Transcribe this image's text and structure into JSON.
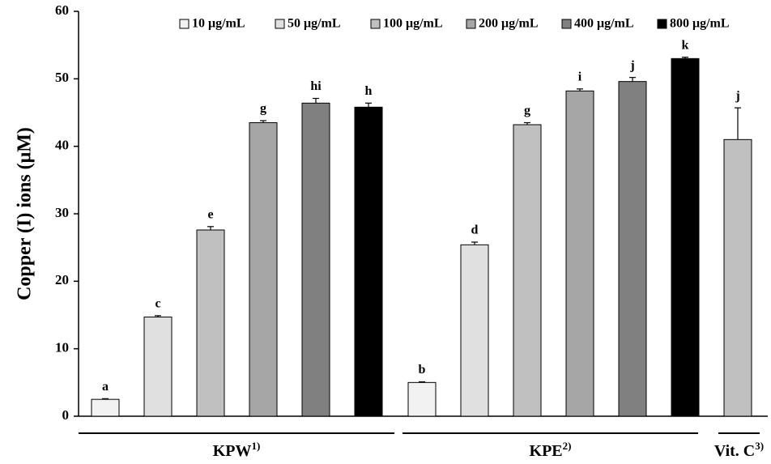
{
  "chart_data": {
    "type": "bar",
    "y_label": "Copper (I) ions (μM)",
    "categories": [
      "KPW",
      "KPE"
    ],
    "category_superscripts": [
      "1)",
      "2)"
    ],
    "series": [
      {
        "name": "10 μg/mL",
        "color": "#f2f2f2",
        "values": [
          2.5,
          5.0
        ],
        "errors": [
          0.1,
          0.1
        ],
        "letters": [
          "a",
          "b"
        ]
      },
      {
        "name": "50 μg/mL",
        "color": "#e0e0e0",
        "values": [
          14.7,
          25.4
        ],
        "errors": [
          0.2,
          0.4
        ],
        "letters": [
          "c",
          "d"
        ]
      },
      {
        "name": "100 μg/mL",
        "color": "#c0c0c0",
        "values": [
          27.6,
          43.2
        ],
        "errors": [
          0.5,
          0.3
        ],
        "letters": [
          "e",
          "g"
        ]
      },
      {
        "name": "200 μg/mL",
        "color": "#a6a6a6",
        "values": [
          43.5,
          48.2
        ],
        "errors": [
          0.3,
          0.3
        ],
        "letters": [
          "g",
          "i"
        ]
      },
      {
        "name": "400 μg/mL",
        "color": "#808080",
        "values": [
          46.4,
          49.6
        ],
        "errors": [
          0.7,
          0.6
        ],
        "letters": [
          "hi",
          "j"
        ]
      },
      {
        "name": "800 μg/mL",
        "color": "#000000",
        "values": [
          45.8,
          53.0
        ],
        "errors": [
          0.6,
          0.2
        ],
        "letters": [
          "h",
          "k"
        ]
      }
    ],
    "reference": {
      "label": "Vit. C",
      "superscript": "3)",
      "value": 41.0,
      "error": 4.7,
      "letter": "j",
      "color": "#c0c0c0"
    },
    "ylim": [
      0,
      60
    ],
    "yticks": [
      0,
      10,
      20,
      30,
      40,
      50,
      60
    ],
    "grid": false
  }
}
